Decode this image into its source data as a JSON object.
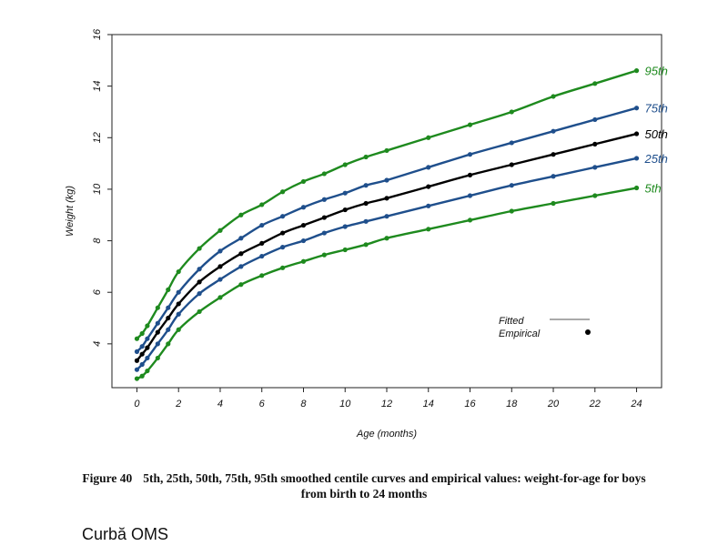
{
  "caption": {
    "figure": "Figure 40",
    "line1": "5th, 25th, 50th, 75th, 95th smoothed centile curves and empirical values: weight-for-age for boys",
    "line2": "from birth to 24 months"
  },
  "footer": {
    "text": "Curbă OMS"
  },
  "chart_data": {
    "type": "line",
    "xlabel": "Age (months)",
    "ylabel": "Weight (kg)",
    "xlim": [
      -1.2,
      25.2
    ],
    "ylim": [
      2.3,
      16
    ],
    "x_ticks": [
      0,
      2,
      4,
      6,
      8,
      10,
      12,
      14,
      16,
      18,
      20,
      22,
      24
    ],
    "y_ticks": [
      4,
      6,
      8,
      10,
      12,
      14,
      16
    ],
    "grid": false,
    "legend": {
      "position": "bottom-right",
      "entries": [
        {
          "label": "Fitted",
          "kind": "line"
        },
        {
          "label": "Empirical",
          "kind": "point"
        }
      ]
    },
    "x": [
      0,
      0.25,
      0.5,
      1,
      1.5,
      2,
      3,
      4,
      5,
      6,
      7,
      8,
      9,
      10,
      11,
      12,
      14,
      16,
      18,
      20,
      22,
      24
    ],
    "series": [
      {
        "name": "95th",
        "color": "#1e8a1e",
        "values": [
          4.2,
          4.4,
          4.7,
          5.4,
          6.1,
          6.8,
          7.7,
          8.4,
          9.0,
          9.4,
          9.9,
          10.3,
          10.6,
          10.95,
          11.25,
          11.5,
          12.0,
          12.5,
          13.0,
          13.6,
          14.1,
          14.6
        ]
      },
      {
        "name": "75th",
        "color": "#1f4f8c",
        "values": [
          3.7,
          3.9,
          4.2,
          4.8,
          5.4,
          6.0,
          6.9,
          7.6,
          8.1,
          8.6,
          8.95,
          9.3,
          9.6,
          9.85,
          10.15,
          10.35,
          10.85,
          11.35,
          11.8,
          12.25,
          12.7,
          13.15
        ]
      },
      {
        "name": "50th",
        "color": "#000000",
        "values": [
          3.35,
          3.6,
          3.85,
          4.45,
          5.0,
          5.55,
          6.4,
          7.0,
          7.5,
          7.9,
          8.3,
          8.6,
          8.9,
          9.2,
          9.45,
          9.65,
          10.1,
          10.55,
          10.95,
          11.35,
          11.75,
          12.15
        ]
      },
      {
        "name": "25th",
        "color": "#1f4f8c",
        "values": [
          3.0,
          3.2,
          3.45,
          4.0,
          4.55,
          5.15,
          5.95,
          6.5,
          7.0,
          7.4,
          7.75,
          8.0,
          8.3,
          8.55,
          8.75,
          8.95,
          9.35,
          9.75,
          10.15,
          10.5,
          10.85,
          11.2
        ]
      },
      {
        "name": "5th",
        "color": "#1e8a1e",
        "values": [
          2.65,
          2.75,
          2.95,
          3.45,
          4.0,
          4.55,
          5.25,
          5.8,
          6.3,
          6.65,
          6.95,
          7.2,
          7.45,
          7.65,
          7.85,
          8.1,
          8.45,
          8.8,
          9.15,
          9.45,
          9.75,
          10.05
        ]
      }
    ]
  }
}
